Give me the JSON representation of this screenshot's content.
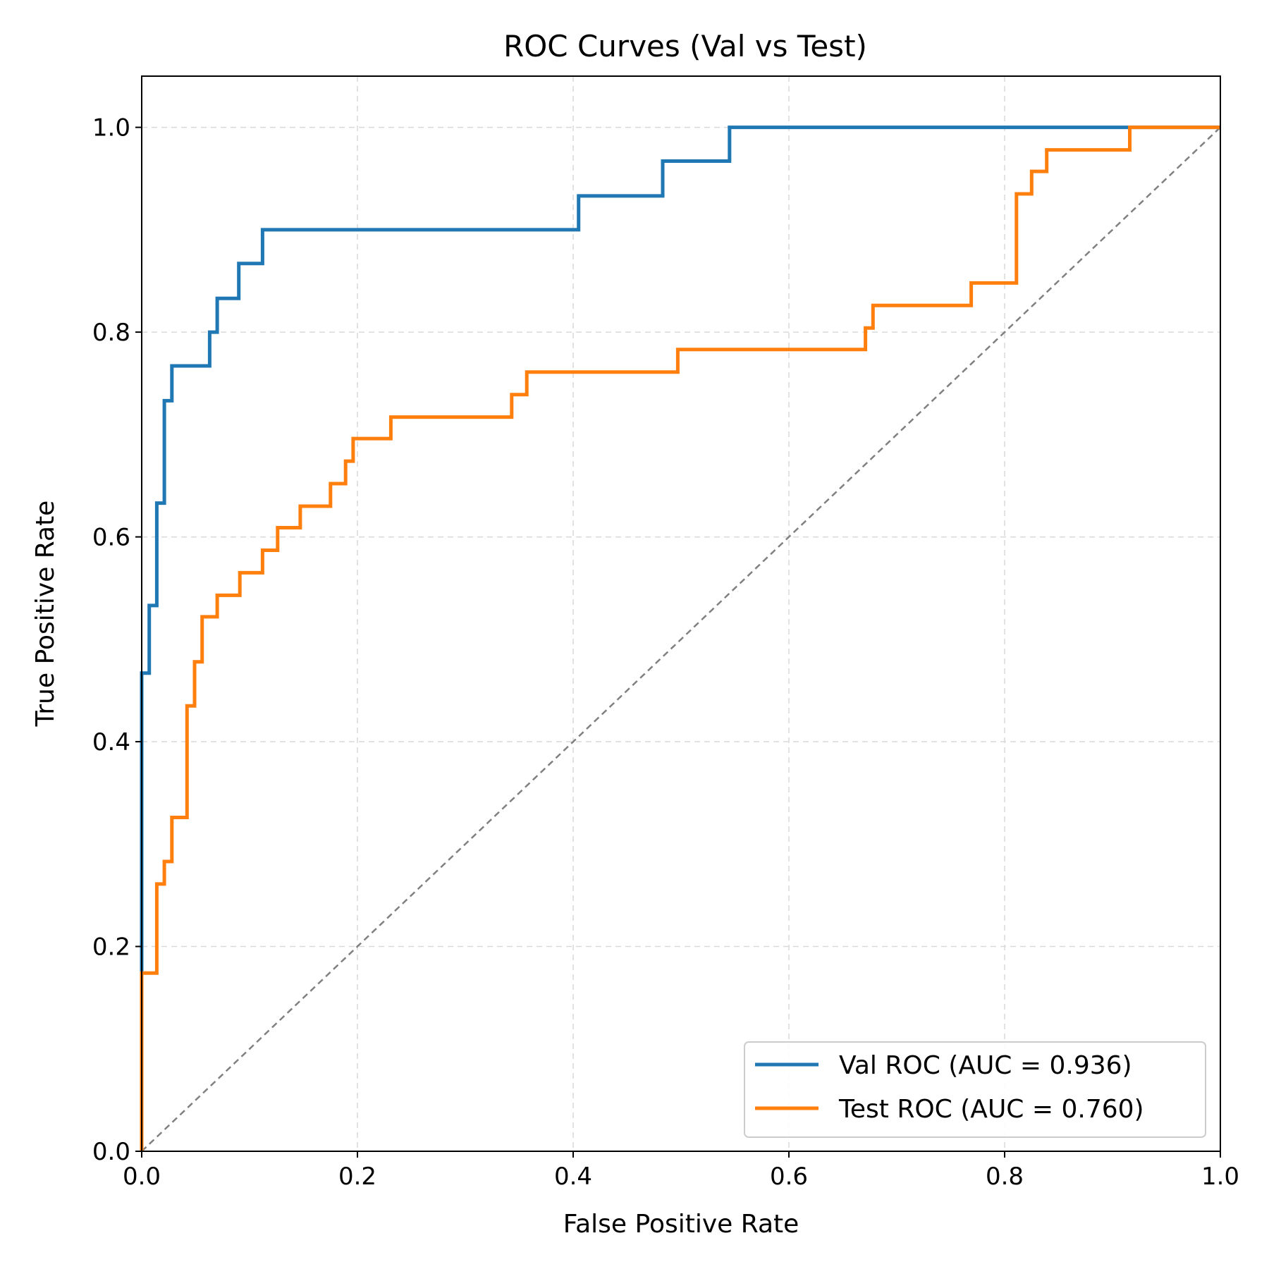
{
  "chart_data": {
    "type": "line",
    "title": "ROC Curves (Val vs Test)",
    "xlabel": "False Positive Rate",
    "ylabel": "True Positive Rate",
    "xlim": [
      0,
      1
    ],
    "ylim": [
      0,
      1.05
    ],
    "xticks": [
      "0.0",
      "0.2",
      "0.4",
      "0.6",
      "0.8",
      "1.0"
    ],
    "yticks": [
      "0.0",
      "0.2",
      "0.4",
      "0.6",
      "0.8",
      "1.0"
    ],
    "grid": true,
    "legend_position": "lower-right",
    "series": [
      {
        "name": "Val ROC (AUC = 0.936)",
        "color": "#1f77b4",
        "step": true,
        "points": [
          [
            0.0,
            0.0
          ],
          [
            0.0,
            0.467
          ],
          [
            0.007,
            0.467
          ],
          [
            0.007,
            0.533
          ],
          [
            0.014,
            0.533
          ],
          [
            0.014,
            0.633
          ],
          [
            0.021,
            0.633
          ],
          [
            0.021,
            0.733
          ],
          [
            0.028,
            0.733
          ],
          [
            0.028,
            0.767
          ],
          [
            0.063,
            0.767
          ],
          [
            0.063,
            0.8
          ],
          [
            0.07,
            0.8
          ],
          [
            0.07,
            0.833
          ],
          [
            0.09,
            0.833
          ],
          [
            0.09,
            0.867
          ],
          [
            0.112,
            0.867
          ],
          [
            0.112,
            0.9
          ],
          [
            0.405,
            0.9
          ],
          [
            0.405,
            0.933
          ],
          [
            0.483,
            0.933
          ],
          [
            0.483,
            0.967
          ],
          [
            0.545,
            0.967
          ],
          [
            0.545,
            1.0
          ],
          [
            1.0,
            1.0
          ]
        ]
      },
      {
        "name": "Test ROC (AUC = 0.760)",
        "color": "#ff7f0e",
        "step": true,
        "points": [
          [
            0.0,
            0.0
          ],
          [
            0.0,
            0.174
          ],
          [
            0.014,
            0.174
          ],
          [
            0.014,
            0.261
          ],
          [
            0.021,
            0.261
          ],
          [
            0.021,
            0.283
          ],
          [
            0.028,
            0.283
          ],
          [
            0.028,
            0.326
          ],
          [
            0.042,
            0.326
          ],
          [
            0.042,
            0.435
          ],
          [
            0.049,
            0.435
          ],
          [
            0.049,
            0.478
          ],
          [
            0.056,
            0.478
          ],
          [
            0.056,
            0.522
          ],
          [
            0.07,
            0.522
          ],
          [
            0.07,
            0.543
          ],
          [
            0.091,
            0.543
          ],
          [
            0.091,
            0.565
          ],
          [
            0.112,
            0.565
          ],
          [
            0.112,
            0.587
          ],
          [
            0.126,
            0.587
          ],
          [
            0.126,
            0.609
          ],
          [
            0.147,
            0.609
          ],
          [
            0.147,
            0.63
          ],
          [
            0.175,
            0.63
          ],
          [
            0.175,
            0.652
          ],
          [
            0.189,
            0.652
          ],
          [
            0.189,
            0.674
          ],
          [
            0.196,
            0.674
          ],
          [
            0.196,
            0.696
          ],
          [
            0.231,
            0.696
          ],
          [
            0.231,
            0.717
          ],
          [
            0.343,
            0.717
          ],
          [
            0.343,
            0.739
          ],
          [
            0.357,
            0.739
          ],
          [
            0.357,
            0.761
          ],
          [
            0.497,
            0.761
          ],
          [
            0.497,
            0.783
          ],
          [
            0.671,
            0.783
          ],
          [
            0.671,
            0.804
          ],
          [
            0.678,
            0.804
          ],
          [
            0.678,
            0.826
          ],
          [
            0.769,
            0.826
          ],
          [
            0.769,
            0.848
          ],
          [
            0.811,
            0.848
          ],
          [
            0.811,
            0.935
          ],
          [
            0.825,
            0.935
          ],
          [
            0.825,
            0.957
          ],
          [
            0.839,
            0.957
          ],
          [
            0.839,
            0.978
          ],
          [
            0.916,
            0.978
          ],
          [
            0.916,
            1.0
          ],
          [
            1.0,
            1.0
          ]
        ]
      }
    ],
    "reference_line": {
      "points": [
        [
          0,
          0
        ],
        [
          1,
          1
        ]
      ],
      "color": "#808080",
      "style": "dashed"
    }
  }
}
